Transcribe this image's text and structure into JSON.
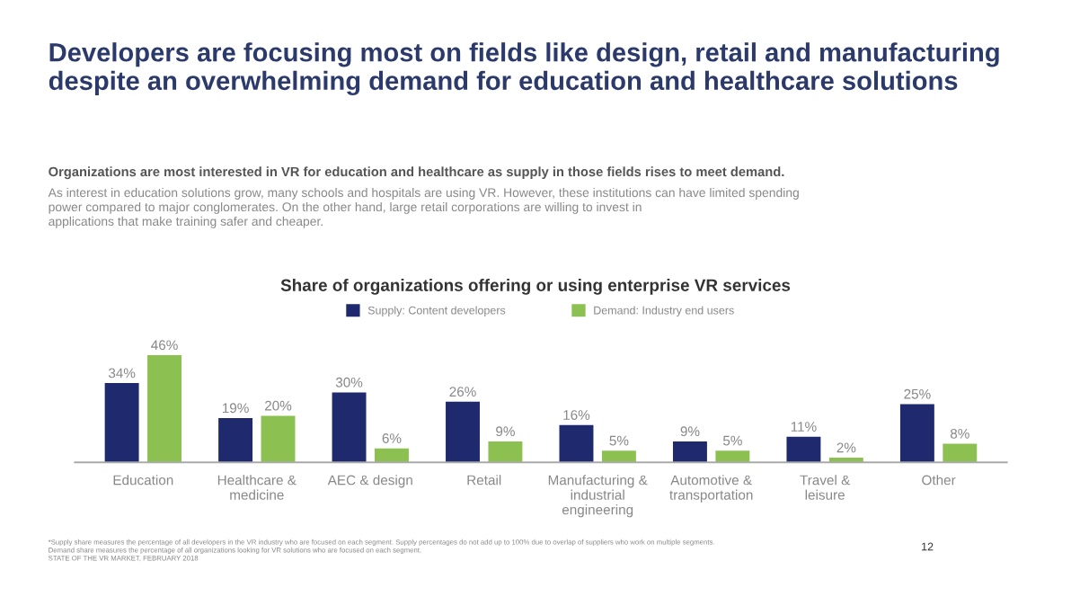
{
  "chart_data": {
    "type": "bar",
    "title": "Developers are focusing most on fields like design, retail and manufacturing\ndespite an overwhelming demand for education and healthcare solutions",
    "subtitle": "Organizations are most interested in VR for education and healthcare as supply in those fields rises to meet demand.",
    "annotations": [
      "As interest in education solutions grow, many schools and hospitals are using VR. However, these institutions can have limited spending\npower compared to major conglomerates. On the other hand, large retail corporations are willing to invest in\napplications that make training safer and cheaper.",
      "Share of organizations offering or using enterprise VR services",
      "*Supply share measures the percentage of all developers in the VR industry who are focused on each segment. Supply percentages do not add up to 100% due to overlap of suppliers who work on multiple segments.\nDemand share measures the percentage of all organizations looking for VR solutions who are focused on each segment.\nSTATE OF THE VR MARKET, FEBRUARY 2018",
      "12"
    ],
    "categories": [
      "Education",
      "Healthcare &\nmedicine",
      "AEC & design",
      "Retail",
      "Manufacturing &\nindustrial\nengineering",
      "Automotive &\ntransportation",
      "Travel &\nleisure",
      "Other"
    ],
    "series": [
      {
        "name": "Supply: Content developers",
        "color": "#1f2a6e",
        "values": [
          34,
          19,
          30,
          26,
          16,
          9,
          11,
          25
        ],
        "value_labels": [
          "34%",
          "19%",
          "30%",
          "26%",
          "16%",
          "9%",
          "11%",
          "25%"
        ]
      },
      {
        "name": "Demand: Industry end users",
        "color": "#8cc152",
        "values": [
          46,
          20,
          6,
          9,
          5,
          5,
          2,
          8
        ],
        "value_labels": [
          "46%",
          "20%",
          "6%",
          "9%",
          "5%",
          "5%",
          "2%",
          "8%"
        ]
      }
    ],
    "legend": "top",
    "grid": false
  }
}
